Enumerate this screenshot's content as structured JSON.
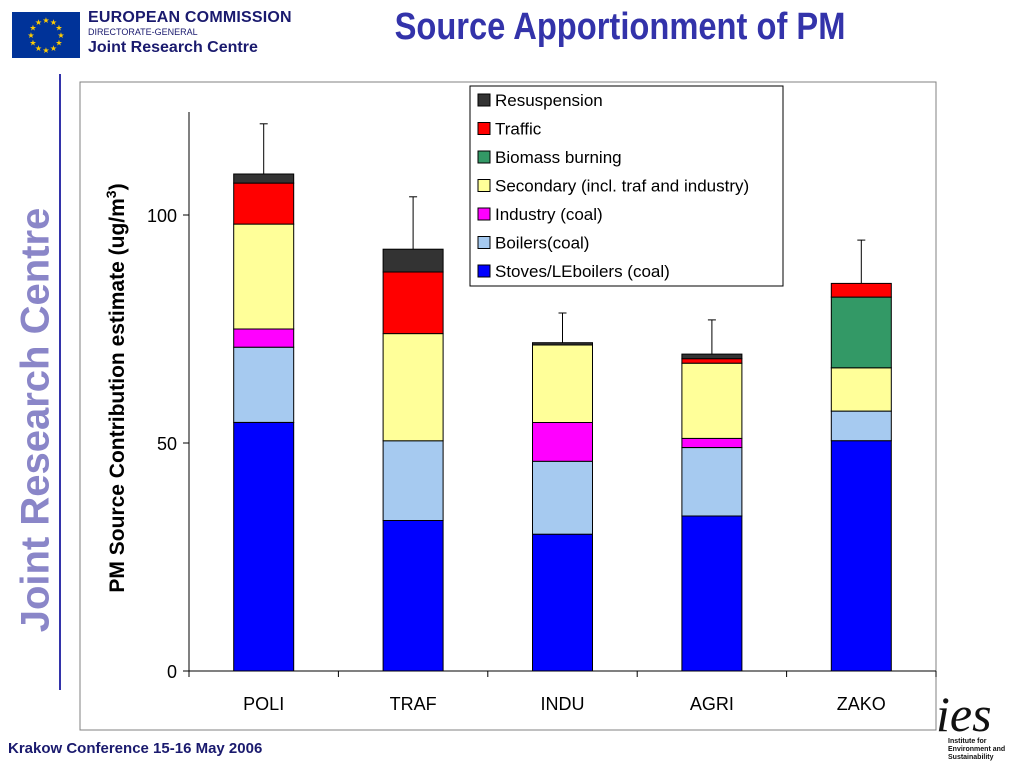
{
  "header": {
    "org_line1": "EUROPEAN COMMISSION",
    "org_line2": "DIRECTORATE-GENERAL",
    "org_line3": "Joint Research Centre",
    "slide_title": "Source Apportionment of PM"
  },
  "sidebar": {
    "label": "Joint Research Centre"
  },
  "footer": {
    "text": "Krakow Conference  15-16 May 2006"
  },
  "logo": {
    "word": "ies",
    "sub_line1": "Institute for",
    "sub_line2": "Environment and",
    "sub_line3": "Sustainability"
  },
  "colors": {
    "eu_flag_blue": "#003399",
    "eu_star_yellow": "#ffcc00",
    "title_blue": "#3333aa"
  },
  "chart_data": {
    "type": "bar",
    "stacked": true,
    "categories": [
      "POLI",
      "TRAF",
      "INDU",
      "AGRI",
      "ZAKO"
    ],
    "ylabel": "PM Source Contribution estimate (ug/m",
    "ylabel_sup": "3",
    "ylabel_end": ")",
    "ylim": [
      0,
      120
    ],
    "yticks": [
      0,
      50,
      100
    ],
    "grid": false,
    "legend_position": "top-right",
    "series": [
      {
        "name": "Stoves/LEboilers (coal)",
        "color": "#0000ff",
        "values": [
          54.5,
          33,
          30,
          34,
          50.5
        ]
      },
      {
        "name": "Boilers(coal)",
        "color": "#a6caf0",
        "values": [
          16.5,
          17.5,
          16,
          15,
          6.5
        ]
      },
      {
        "name": "Industry (coal)",
        "color": "#ff00ff",
        "values": [
          4,
          0,
          8.5,
          2,
          0
        ]
      },
      {
        "name": "Secondary (incl. traf and industry)",
        "color": "#ffff99",
        "values": [
          23,
          23.5,
          17,
          16.5,
          9.5
        ]
      },
      {
        "name": "Biomass burning",
        "color": "#339966",
        "values": [
          0,
          0,
          0,
          0,
          15.5
        ]
      },
      {
        "name": "Traffic",
        "color": "#ff0000",
        "values": [
          9,
          13.5,
          0,
          1,
          3
        ]
      },
      {
        "name": "Resuspension",
        "color": "#333333",
        "values": [
          2,
          5,
          0.5,
          1,
          0
        ]
      }
    ],
    "error_bar_tops": [
      120,
      104,
      78.5,
      77,
      94.5
    ]
  }
}
